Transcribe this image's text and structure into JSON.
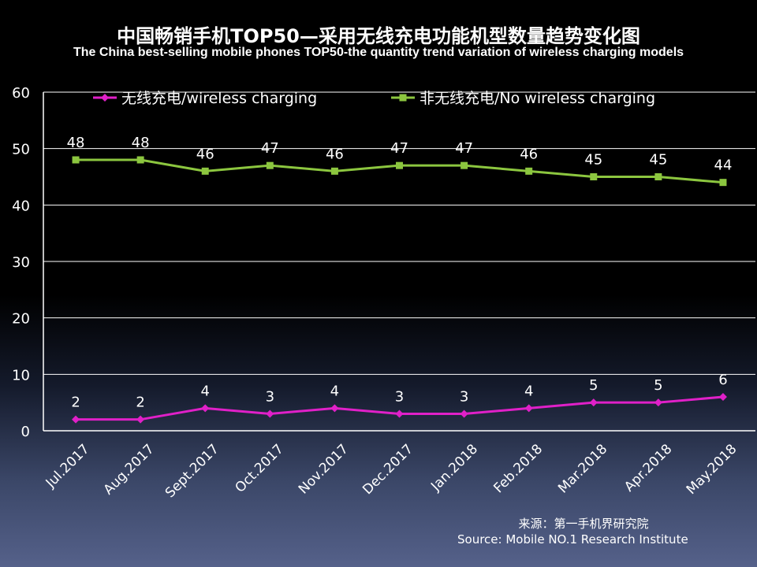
{
  "header": {
    "title_cn": "中国畅销手机TOP50—采用无线充电功能机型数量趋势变化图",
    "title_en": "The China best-selling mobile phones TOP50-the quantity trend variation of wireless charging models"
  },
  "footer": {
    "source_cn": "来源：第一手机界研究院",
    "source_en": "Source: Mobile NO.1 Research Institute"
  },
  "chart_data": {
    "type": "line",
    "title": "中国畅销手机TOP50—采用无线充电功能机型数量趋势变化图",
    "subtitle": "The China best-selling mobile phones TOP50-the quantity trend variation of wireless charging models",
    "xlabel": "",
    "ylabel": "",
    "ylim": [
      0,
      60
    ],
    "yticks": [
      0,
      10,
      20,
      30,
      40,
      50,
      60
    ],
    "grid": true,
    "legend_position": "top",
    "categories": [
      "Jul.2017",
      "Aug.2017",
      "Sept.2017",
      "Oct.2017",
      "Nov.2017",
      "Dec.2017",
      "Jan.2018",
      "Feb.2018",
      "Mar.2018",
      "Apr.2018",
      "May.2018"
    ],
    "series": [
      {
        "name": "无线充电/wireless charging",
        "color": "#e020c8",
        "marker": "diamond",
        "values": [
          2,
          2,
          4,
          3,
          4,
          3,
          3,
          4,
          5,
          5,
          6
        ]
      },
      {
        "name": "非无线充电/No wireless charging",
        "color": "#8cc63f",
        "marker": "square",
        "values": [
          48,
          48,
          46,
          47,
          46,
          47,
          47,
          46,
          45,
          45,
          44
        ]
      }
    ]
  }
}
